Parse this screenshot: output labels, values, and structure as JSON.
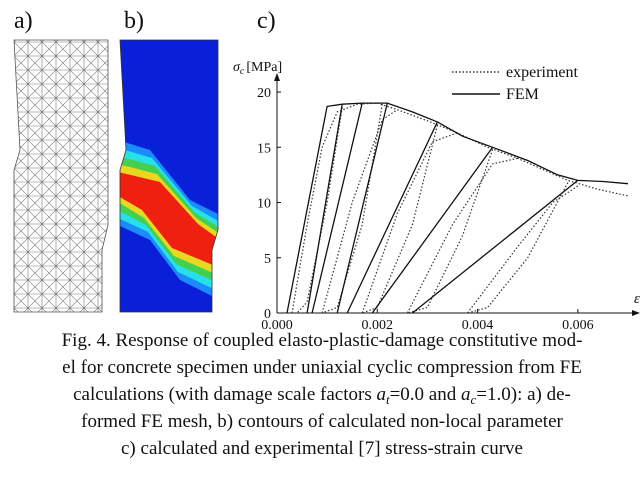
{
  "panel_labels": [
    "a)",
    "b)",
    "c)"
  ],
  "chart_data": {
    "type": "line",
    "ylabel_symbol": "σ",
    "ylabel_subscript": "c",
    "ylabel_unit": "[MPa]",
    "xlabel": "ε",
    "xlim": [
      0,
      0.0072
    ],
    "ylim": [
      0,
      21
    ],
    "xticks": [
      {
        "value": 0,
        "label": "0.000"
      },
      {
        "value": 0.002,
        "label": "0.002"
      },
      {
        "value": 0.004,
        "label": "0.004"
      },
      {
        "value": 0.006,
        "label": "0.006"
      }
    ],
    "yticks": [
      0,
      5,
      10,
      15,
      20
    ],
    "series": [
      {
        "name": "experiment",
        "color": "#333333",
        "dash": "dotted",
        "x": [
          0.0003,
          0.0006,
          0.0009,
          0.0012,
          0.0016,
          0.002,
          0.0024,
          0.003,
          0.0036,
          0.0042,
          0.0048,
          0.0053,
          0.0058,
          0.0064,
          0.007,
          null,
          0.0013,
          0.001,
          0.0006,
          0.0004,
          null,
          0.0021,
          0.0017,
          0.0012,
          0.0009,
          null,
          0.0009,
          0.0015,
          0.0021,
          0.0024,
          null,
          0.0032,
          0.0027,
          0.002,
          0.0017,
          null,
          0.0017,
          0.0024,
          0.0031,
          0.0036,
          null,
          0.0043,
          0.0037,
          0.003,
          0.0026,
          null,
          0.0026,
          0.0035,
          0.0043,
          0.0048,
          null,
          0.0058,
          0.005,
          0.0042,
          0.0038,
          null,
          0.0038,
          0.0048,
          0.0055,
          0.006
        ],
        "values": [
          0,
          8,
          15,
          18.2,
          18.9,
          19.0,
          18.4,
          17.4,
          16.3,
          15.0,
          14.0,
          13.0,
          12.0,
          11.2,
          10.6,
          null,
          18.6,
          10,
          1,
          0,
          null,
          18.9,
          8,
          0.5,
          0,
          null,
          0,
          10,
          17.5,
          18.4,
          null,
          17.0,
          8,
          0.5,
          0,
          null,
          0,
          9,
          15.5,
          16.3,
          null,
          14.8,
          7,
          0.5,
          0,
          null,
          0,
          8,
          13.5,
          14.0,
          null,
          11.8,
          5,
          0.5,
          0,
          null,
          0,
          6,
          10,
          11.5
        ]
      },
      {
        "name": "FEM",
        "color": "#111111",
        "dash": "solid",
        "x": [
          0.0002,
          0.001,
          0.0013,
          0.0017,
          0.0022,
          0.0027,
          0.0032,
          0.0037,
          0.0043,
          0.005,
          0.0056,
          0.006,
          0.0065,
          0.007,
          null,
          0.0006,
          0.0013,
          null,
          0.0007,
          0.0017,
          null,
          0.0012,
          0.0022,
          null,
          0.0014,
          0.0032,
          null,
          0.0019,
          0.0043,
          null,
          0.0027,
          0.006
        ],
        "values": [
          0,
          18.7,
          18.9,
          19.0,
          19.0,
          18.2,
          17.3,
          16.0,
          15.0,
          13.8,
          12.5,
          12.0,
          11.9,
          11.7,
          null,
          0,
          18.9,
          null,
          0,
          19.0,
          null,
          0,
          19.0,
          null,
          0,
          17.3,
          null,
          0,
          15.0,
          null,
          0,
          12.0
        ]
      }
    ]
  },
  "caption": {
    "line1": "Fig. 4. Response of coupled elasto-plastic-damage constitutive mod-",
    "line2": "el for concrete specimen under uniaxial cyclic compression from FE",
    "line3": {
      "before": "calculations (with damage scale factors ",
      "var1": "a",
      "sub1": "t",
      "mid": "=0.0 and ",
      "var2": "a",
      "sub2": "c",
      "after": "=1.0): a) de-"
    },
    "line4": "formed FE mesh, b) contours of calculated non-local parameter",
    "line5": "c) calculated and experimental [7] stress-strain curve"
  }
}
